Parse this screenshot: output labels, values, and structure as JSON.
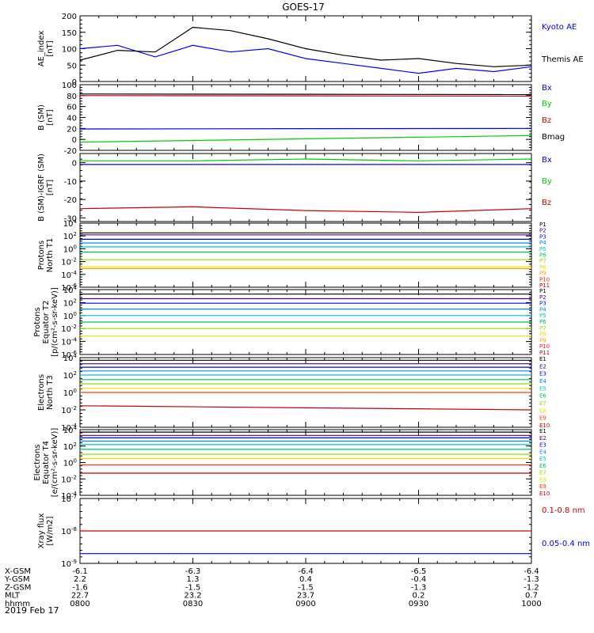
{
  "title": "GOES-17",
  "time_axis": {
    "rows": [
      {
        "label": "X-GSM",
        "values": [
          "-6.1",
          "-6.3",
          "-6.4",
          "-6.5",
          "-6.4"
        ]
      },
      {
        "label": "Y-GSM",
        "values": [
          "2.2",
          "1.3",
          "0.4",
          "-0.4",
          "-1.3"
        ]
      },
      {
        "label": "Z-GSM",
        "values": [
          "-1.6",
          "-1.5",
          "-1.5",
          "-1.3",
          "-1.2"
        ]
      },
      {
        "label": "MLT",
        "values": [
          "22.7",
          "23.2",
          "23.7",
          "0.2",
          "0.7"
        ]
      },
      {
        "label": "hhmm",
        "values": [
          "0800",
          "0830",
          "0900",
          "0930",
          "1000"
        ]
      }
    ],
    "date": "2019 Feb 17"
  },
  "chart_data": [
    {
      "type": "line",
      "ylabel": [
        "AE_index",
        "[nT]"
      ],
      "ylim": [
        0,
        200
      ],
      "yticks": [
        "0",
        "50",
        "100",
        "150",
        "200"
      ],
      "x": [
        "08:00",
        "08:10",
        "08:20",
        "08:30",
        "08:40",
        "08:50",
        "09:00",
        "09:10",
        "09:20",
        "09:30",
        "09:40",
        "09:50",
        "10:00"
      ],
      "series": [
        {
          "name": "Kyoto AE",
          "color": "#0000ff",
          "values": [
            100,
            110,
            75,
            110,
            90,
            100,
            70,
            55,
            40,
            25,
            40,
            30,
            45
          ]
        },
        {
          "name": "Themis AE",
          "color": "#000000",
          "values": [
            65,
            95,
            90,
            165,
            155,
            130,
            100,
            80,
            65,
            70,
            55,
            45,
            50
          ]
        }
      ]
    },
    {
      "type": "line",
      "ylabel": [
        "B (SM)",
        "[nT]"
      ],
      "ylim": [
        -20,
        100
      ],
      "yticks": [
        "-20",
        "0",
        "20",
        "40",
        "60",
        "80",
        "100"
      ],
      "x": [
        "08:00",
        "10:00"
      ],
      "series": [
        {
          "name": "Bx",
          "color": "#0000ff",
          "values": [
            19,
            20
          ]
        },
        {
          "name": "By",
          "color": "#00cc00",
          "values": [
            -5,
            7
          ]
        },
        {
          "name": "Bz",
          "color": "#cc0000",
          "values": [
            80,
            79
          ]
        },
        {
          "name": "Bmag",
          "color": "#000000",
          "values": [
            83,
            82
          ]
        }
      ]
    },
    {
      "type": "line",
      "ylabel": [
        "B (SM)-IGRF (SM)",
        "[nT]"
      ],
      "ylim": [
        -32,
        5
      ],
      "yticks": [
        "-30",
        "-20",
        "-10",
        "0"
      ],
      "x": [
        "08:00",
        "08:30",
        "09:00",
        "09:30",
        "10:00"
      ],
      "series": [
        {
          "name": "Bx",
          "color": "#0000ff",
          "values": [
            -1,
            -1,
            -1,
            -1,
            -1
          ]
        },
        {
          "name": "By",
          "color": "#00cc00",
          "values": [
            1,
            1,
            2,
            1,
            2
          ]
        },
        {
          "name": "Bz",
          "color": "#cc0000",
          "values": [
            -25,
            -24,
            -26,
            -27,
            -25
          ]
        }
      ]
    },
    {
      "type": "line",
      "log": true,
      "ylabel": [
        "Protons",
        "North T1"
      ],
      "yticks": [
        "10^-6",
        "10^-4",
        "10^-2",
        "10^0",
        "10^2",
        "10^4"
      ],
      "series": [
        {
          "name": "P1",
          "color": "#000000",
          "values": [
            300,
            300
          ]
        },
        {
          "name": "P2",
          "color": "#4b0082",
          "values": [
            150,
            150
          ]
        },
        {
          "name": "P3",
          "color": "#0000ff",
          "values": [
            30,
            30
          ]
        },
        {
          "name": "P4",
          "color": "#0088ff",
          "values": [
            8,
            8
          ]
        },
        {
          "name": "P5",
          "color": "#00c8c8",
          "values": [
            2,
            2
          ]
        },
        {
          "name": "P6",
          "color": "#00c060",
          "values": [
            0.3,
            0.3
          ]
        },
        {
          "name": "P7",
          "color": "#90e000",
          "values": [
            0.02,
            0.02
          ]
        },
        {
          "name": "P8",
          "color": "#e8e000",
          "values": [
            0.0015,
            0.0015
          ]
        },
        {
          "name": "P9",
          "color": "#ffa000",
          "values": [
            0.0008,
            0.0008
          ]
        },
        {
          "name": "P10",
          "color": "#ff2000",
          "values": []
        },
        {
          "name": "P11",
          "color": "#c00000",
          "values": []
        }
      ]
    },
    {
      "type": "line",
      "log": true,
      "ylabel": [
        "Protons",
        "Equator T2",
        "[p/(cm²-s-sr-keV)]"
      ],
      "yticks": [
        "10^-6",
        "10^-4",
        "10^-2",
        "10^0",
        "10^2",
        "10^4"
      ],
      "series": [
        {
          "name": "P1",
          "color": "#000000",
          "values": [
            2000,
            2000
          ]
        },
        {
          "name": "P2",
          "color": "#4b0082",
          "values": [
            400,
            400
          ]
        },
        {
          "name": "P3",
          "color": "#0000ff",
          "values": [
            80,
            80
          ]
        },
        {
          "name": "P4",
          "color": "#0088ff",
          "values": [
            10,
            10
          ]
        },
        {
          "name": "P5",
          "color": "#00c8c8",
          "values": [
            1,
            1
          ]
        },
        {
          "name": "P6",
          "color": "#00c060",
          "values": [
            0.1,
            0.1
          ]
        },
        {
          "name": "P7",
          "color": "#90e000",
          "values": [
            0.01,
            0.01
          ]
        },
        {
          "name": "P8",
          "color": "#e8e000",
          "values": [
            0.0007,
            0.0007
          ]
        },
        {
          "name": "P9",
          "color": "#ffa000",
          "values": []
        },
        {
          "name": "P10",
          "color": "#ff2000",
          "values": []
        },
        {
          "name": "P11",
          "color": "#c00000",
          "values": []
        }
      ]
    },
    {
      "type": "line",
      "log": true,
      "ylabel": [
        "Electrons",
        "North T3"
      ],
      "yticks": [
        "10^-4",
        "10^-2",
        "10^0",
        "10^2",
        "10^4"
      ],
      "series": [
        {
          "name": "E1",
          "color": "#000000",
          "values": [
            5000,
            5000
          ]
        },
        {
          "name": "E2",
          "color": "#4b0082",
          "values": [
            2000,
            2000
          ]
        },
        {
          "name": "E3",
          "color": "#0000ff",
          "values": [
            800,
            800
          ]
        },
        {
          "name": "E4",
          "color": "#0088ff",
          "values": [
            300,
            300
          ]
        },
        {
          "name": "E5",
          "color": "#00c8c8",
          "values": [
            100,
            100
          ]
        },
        {
          "name": "E6",
          "color": "#00c060",
          "values": [
            30,
            30
          ]
        },
        {
          "name": "E7",
          "color": "#90e000",
          "values": [
            10,
            10
          ]
        },
        {
          "name": "E8",
          "color": "#e8e000",
          "values": [
            3,
            3
          ]
        },
        {
          "name": "E9",
          "color": "#ff4000",
          "values": [
            1,
            1
          ]
        },
        {
          "name": "E10",
          "color": "#c00000",
          "values": [
            0.03,
            0.01
          ]
        }
      ]
    },
    {
      "type": "line",
      "log": true,
      "ylabel": [
        "Electrons",
        "Equator T4",
        "[e/(cm²-s-sr-keV)]"
      ],
      "yticks": [
        "10^-4",
        "10^-2",
        "10^0",
        "10^2",
        "10^4"
      ],
      "series": [
        {
          "name": "E1",
          "color": "#000000",
          "values": [
            5000,
            5000
          ]
        },
        {
          "name": "E2",
          "color": "#4b0082",
          "values": [
            2000,
            2000
          ]
        },
        {
          "name": "E3",
          "color": "#0000ff",
          "values": [
            1000,
            1000
          ]
        },
        {
          "name": "E4",
          "color": "#0088ff",
          "values": [
            400,
            400
          ]
        },
        {
          "name": "E5",
          "color": "#00c8c8",
          "values": [
            150,
            150
          ]
        },
        {
          "name": "E6",
          "color": "#00c060",
          "values": [
            40,
            40
          ]
        },
        {
          "name": "E7",
          "color": "#90e000",
          "values": [
            10,
            10
          ]
        },
        {
          "name": "E8",
          "color": "#e8e000",
          "values": [
            3,
            3
          ]
        },
        {
          "name": "E9",
          "color": "#ff4000",
          "values": [
            0.5,
            0.5
          ]
        },
        {
          "name": "E10",
          "color": "#c00000",
          "values": [
            0.05,
            0.05
          ]
        }
      ]
    },
    {
      "type": "line",
      "log": true,
      "ylabel": [
        "Xray flux",
        "[W/m2]"
      ],
      "yticks": [
        "10^-9",
        "10^-8",
        "10^-7"
      ],
      "series": [
        {
          "name": "0.1-0.8 nm",
          "color": "#cc0000",
          "values": [
            1e-08,
            1e-08
          ]
        },
        {
          "name": "0.05-0.4 nm",
          "color": "#0000ff",
          "values": [
            2e-09,
            2e-09
          ]
        }
      ]
    }
  ]
}
